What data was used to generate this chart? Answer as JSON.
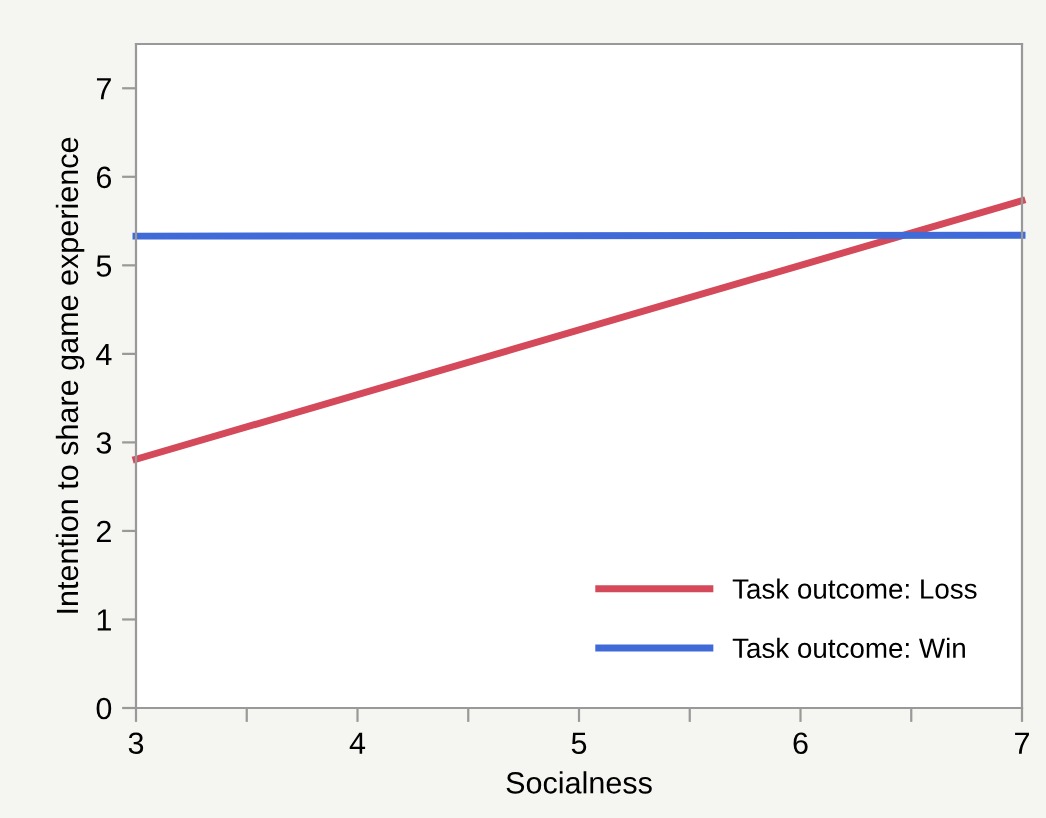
{
  "chart_data": {
    "type": "line",
    "xlabel": "Socialness",
    "ylabel": "Intention to share game experience",
    "xlim": [
      3,
      7
    ],
    "xticks": [
      3,
      {
        "value": 3.5,
        "label": null
      },
      4,
      {
        "value": 4.5,
        "label": null
      },
      5,
      {
        "value": 5.5,
        "label": null
      },
      6,
      {
        "value": 6.5,
        "label": null
      },
      7
    ],
    "x": [
      3,
      7
    ],
    "ylim": [
      0,
      7.5
    ],
    "yticks": [
      0,
      1,
      2,
      3,
      4,
      5,
      6,
      7
    ],
    "series": [
      {
        "name": "Task outcome: Loss",
        "color": "#d44a5a",
        "values": [
          2.81,
          5.73
        ]
      },
      {
        "name": "Task outcome: Win",
        "color": "#3f6ad8",
        "values": [
          5.33,
          5.34
        ]
      }
    ],
    "grid": false,
    "legend": "bottom right",
    "marker": "none",
    "line_style": "solid"
  }
}
